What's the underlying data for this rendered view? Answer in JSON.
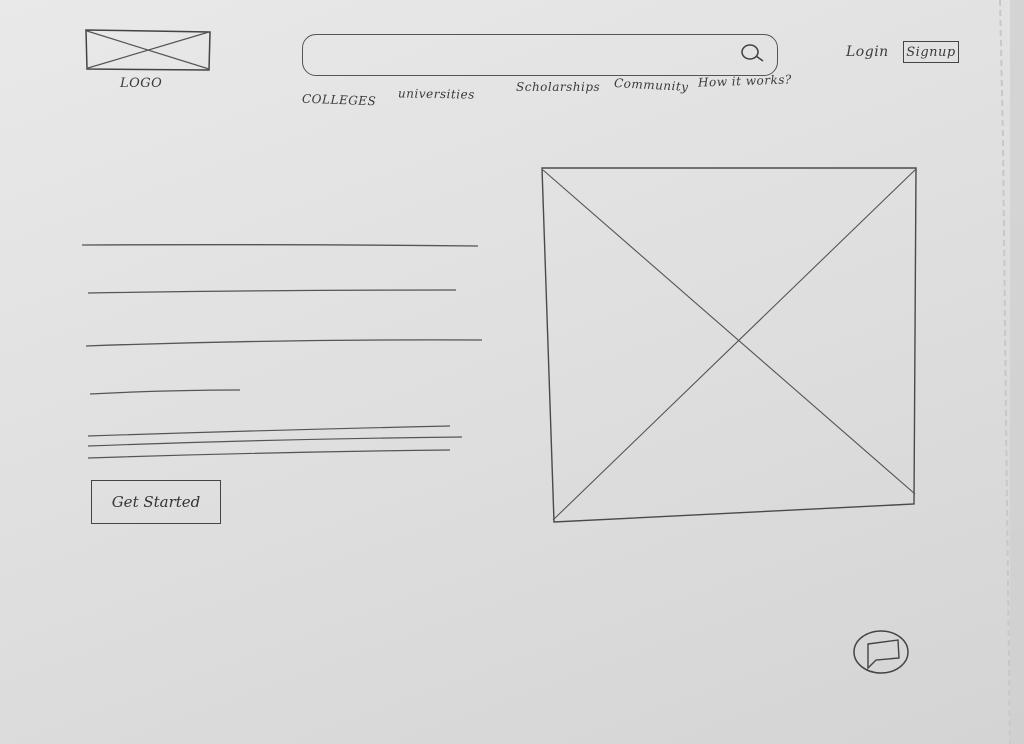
{
  "header": {
    "logo_label": "LOGO",
    "search": {
      "placeholder": "",
      "value": ""
    },
    "login_label": "Login",
    "signup_label": "Signup"
  },
  "nav": {
    "items": [
      {
        "label": "COLLEGES"
      },
      {
        "label": "universities"
      },
      {
        "label": "Scholarships"
      },
      {
        "label": "Community"
      },
      {
        "label": "How it works?"
      }
    ]
  },
  "hero": {
    "cta_label": "Get Started",
    "image_icon": "placeholder-image-icon"
  },
  "chat": {
    "icon": "chat-bubble-icon"
  },
  "colors": {
    "pencil": "#444444",
    "paper": "#e2e2e2"
  }
}
